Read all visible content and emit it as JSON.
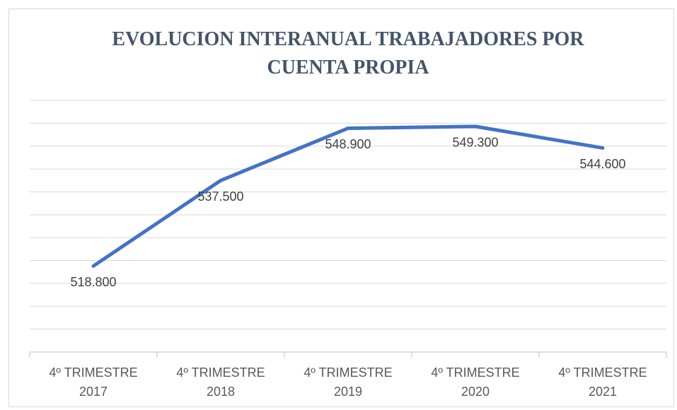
{
  "chart_data": {
    "type": "line",
    "title": "EVOLUCION INTERANUAL TRABAJADORES POR CUENTA PROPIA",
    "categories": [
      "4º TRIMESTRE 2017",
      "4º TRIMESTRE 2018",
      "4º TRIMESTRE 2019",
      "4º TRIMESTRE 2020",
      "4º TRIMESTRE 2021"
    ],
    "series": [
      {
        "color": "#4472c4",
        "values": [
          518800,
          537500,
          548900,
          549300,
          544600
        ],
        "value_labels": [
          "518.800",
          "537.500",
          "548.900",
          "549.300",
          "544.600"
        ]
      }
    ],
    "ylim": [
      500000,
      555000
    ],
    "yticks": [
      500000,
      505000,
      510000,
      515000,
      520000,
      525000,
      530000,
      535000,
      540000,
      545000,
      550000,
      555000
    ],
    "grid": true
  }
}
